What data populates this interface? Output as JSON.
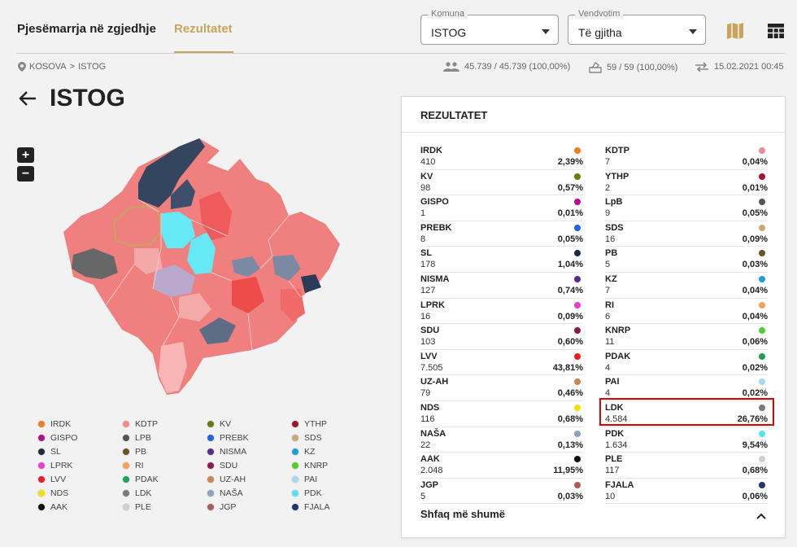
{
  "header": {
    "tabs": [
      {
        "label": "Pjesëmarrja në zgjedhje"
      },
      {
        "label": "Rezultatet"
      }
    ],
    "komuna": {
      "legend": "Komuna",
      "value": "ISTOG"
    },
    "vendvotim": {
      "legend": "Vendvotim",
      "value": "Të gjitha"
    }
  },
  "breadcrumb": {
    "country": "KOSOVA",
    "separator": ">",
    "municipality": "ISTOG"
  },
  "stats": {
    "voters": "45.739 / 45.739 (100,00%)",
    "stations": "59 / 59 (100,00%)",
    "updated": "15.02.2021 00:45"
  },
  "page_title": "ISTOG",
  "zoom": {
    "in": "+",
    "out": "−"
  },
  "legend": [
    {
      "label": "IRDK",
      "color": "#f07d1e"
    },
    {
      "label": "KDTP",
      "color": "#f08c8c"
    },
    {
      "label": "KV",
      "color": "#6b7a10"
    },
    {
      "label": "YTHP",
      "color": "#a3142c"
    },
    {
      "label": "GISPO",
      "color": "#b0128a"
    },
    {
      "label": "LPB",
      "color": "#555555"
    },
    {
      "label": "PREBK",
      "color": "#2463e0"
    },
    {
      "label": "SDS",
      "color": "#c9a97a"
    },
    {
      "label": "SL",
      "color": "#1f2a44"
    },
    {
      "label": "PB",
      "color": "#6b5423"
    },
    {
      "label": "NISMA",
      "color": "#5b2a8a"
    },
    {
      "label": "KZ",
      "color": "#1aa0d8"
    },
    {
      "label": "LPRK",
      "color": "#e83ccf"
    },
    {
      "label": "RI",
      "color": "#f5a05a"
    },
    {
      "label": "SDU",
      "color": "#8a1a52"
    },
    {
      "label": "KNRP",
      "color": "#4cd12c"
    },
    {
      "label": "LVV",
      "color": "#ee1c25"
    },
    {
      "label": "PDAK",
      "color": "#1aa352"
    },
    {
      "label": "UZ-AH",
      "color": "#c98650"
    },
    {
      "label": "PAI",
      "color": "#a9d7f2"
    },
    {
      "label": "NDS",
      "color": "#f2e200"
    },
    {
      "label": "LDK",
      "color": "#7a7a7a"
    },
    {
      "label": "NAŠA",
      "color": "#8fa0c0"
    },
    {
      "label": "PDK",
      "color": "#55e3f2"
    },
    {
      "label": "AAK",
      "color": "#111111"
    },
    {
      "label": "PLE",
      "color": "#cfcfcf"
    },
    {
      "label": "JGP",
      "color": "#a85c5c"
    },
    {
      "label": "FJALA",
      "color": "#1f3470"
    }
  ],
  "results": {
    "title": "REZULTATET",
    "left": [
      {
        "name": "IRDK",
        "votes": "410",
        "pct": "2,39%",
        "color": "#f07d1e"
      },
      {
        "name": "KV",
        "votes": "98",
        "pct": "0,57%",
        "color": "#6b7a10"
      },
      {
        "name": "GISPO",
        "votes": "1",
        "pct": "0,01%",
        "color": "#b0128a"
      },
      {
        "name": "PREBK",
        "votes": "8",
        "pct": "0,05%",
        "color": "#2463e0"
      },
      {
        "name": "SL",
        "votes": "178",
        "pct": "1,04%",
        "color": "#1f2a44"
      },
      {
        "name": "NISMA",
        "votes": "127",
        "pct": "0,74%",
        "color": "#5b2a8a"
      },
      {
        "name": "LPRK",
        "votes": "16",
        "pct": "0,09%",
        "color": "#e83ccf"
      },
      {
        "name": "SDU",
        "votes": "103",
        "pct": "0,60%",
        "color": "#8a1a52"
      },
      {
        "name": "LVV",
        "votes": "7.505",
        "pct": "43,81%",
        "color": "#ee1c25"
      },
      {
        "name": "UZ-AH",
        "votes": "79",
        "pct": "0,46%",
        "color": "#c98650"
      },
      {
        "name": "NDS",
        "votes": "116",
        "pct": "0,68%",
        "color": "#f2e200"
      },
      {
        "name": "NAŠA",
        "votes": "22",
        "pct": "0,13%",
        "color": "#8fa0c0"
      },
      {
        "name": "AAK",
        "votes": "2.048",
        "pct": "11,95%",
        "color": "#111111"
      },
      {
        "name": "JGP",
        "votes": "5",
        "pct": "0,03%",
        "color": "#a85c5c"
      }
    ],
    "right": [
      {
        "name": "KDTP",
        "votes": "7",
        "pct": "0,04%",
        "color": "#f08c8c"
      },
      {
        "name": "YTHP",
        "votes": "2",
        "pct": "0,01%",
        "color": "#a3142c"
      },
      {
        "name": "LpB",
        "votes": "9",
        "pct": "0,05%",
        "color": "#555555"
      },
      {
        "name": "SDS",
        "votes": "16",
        "pct": "0,09%",
        "color": "#c9a97a"
      },
      {
        "name": "PB",
        "votes": "5",
        "pct": "0,03%",
        "color": "#6b5423"
      },
      {
        "name": "KZ",
        "votes": "7",
        "pct": "0,04%",
        "color": "#1aa0d8"
      },
      {
        "name": "RI",
        "votes": "6",
        "pct": "0,04%",
        "color": "#f5a05a"
      },
      {
        "name": "KNRP",
        "votes": "11",
        "pct": "0,06%",
        "color": "#4cd12c"
      },
      {
        "name": "PDAK",
        "votes": "4",
        "pct": "0,02%",
        "color": "#1aa352"
      },
      {
        "name": "PAI",
        "votes": "4",
        "pct": "0,02%",
        "color": "#a9d7f2"
      },
      {
        "name": "LDK",
        "votes": "4.584",
        "pct": "26,76%",
        "color": "#7a7a7a"
      },
      {
        "name": "PDK",
        "votes": "1.634",
        "pct": "9,54%",
        "color": "#55e3f2"
      },
      {
        "name": "PLE",
        "votes": "117",
        "pct": "0,68%",
        "color": "#cfcfcf"
      },
      {
        "name": "FJALA",
        "votes": "10",
        "pct": "0,06%",
        "color": "#1f3470"
      }
    ],
    "show_more": "Shfaq më shumë"
  }
}
